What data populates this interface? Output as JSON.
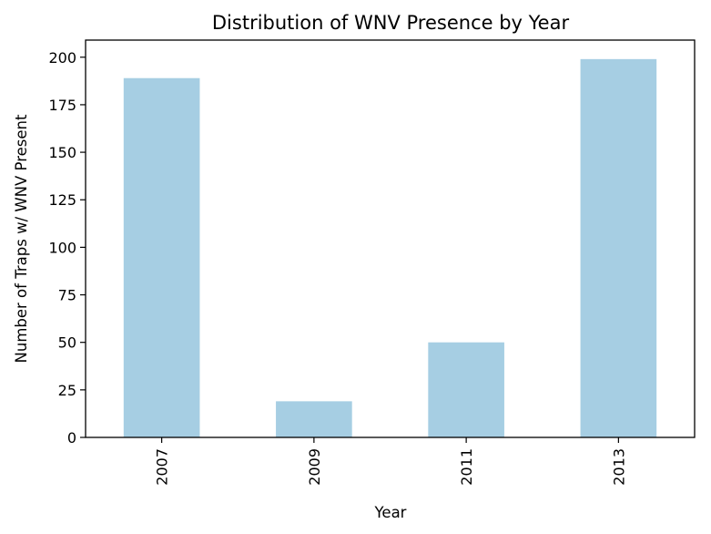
{
  "chart_data": {
    "type": "bar",
    "title": "Distribution of WNV Presence by Year",
    "xlabel": "Year",
    "ylabel": "Number of Traps w/ WNV Present",
    "categories": [
      "2007",
      "2009",
      "2011",
      "2013"
    ],
    "values": [
      189,
      19,
      50,
      199
    ],
    "ylim": [
      0,
      209
    ],
    "yticks": [
      0,
      25,
      50,
      75,
      100,
      125,
      150,
      175,
      200
    ],
    "bar_color": "#a6cee3",
    "grid": false,
    "legend": "none"
  }
}
